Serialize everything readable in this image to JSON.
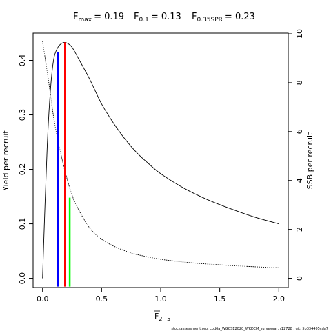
{
  "chart_data": {
    "type": "line",
    "title": {
      "fmax_label": "F",
      "fmax_sub": "max",
      "fmax_value": "= 0.19",
      "f01_label": "F",
      "f01_sub": "0.1",
      "f01_value": "= 0.13",
      "fspr_label": "F",
      "fspr_sub": "0.35SPR",
      "fspr_value": "= 0.23"
    },
    "xlabel": "F",
    "xlabel_sub": "2−5",
    "ylabel_left": "Yield per recruit",
    "ylabel_right": "SSB per recruit",
    "footer": "stockassessment.org, cod6a_WGCSE2020_WKDEM_surveyvar, r12728 , git: 5b334405cda7",
    "xlim": [
      -0.08,
      2.08
    ],
    "ylim_left": [
      -0.017,
      0.45
    ],
    "ylim_right": [
      0,
      10
    ],
    "x_ticks": [
      0,
      0.5,
      1,
      1.5,
      2
    ],
    "x_tick_labels": [
      "0.0",
      "0.5",
      "1.0",
      "1.5",
      "2.0"
    ],
    "y_left_ticks": [
      0,
      0.1,
      0.2,
      0.3,
      0.4
    ],
    "y_left_tick_labels": [
      "0.0",
      "0.1",
      "0.2",
      "0.3",
      "0.4"
    ],
    "y_right_ticks": [
      0,
      2,
      4,
      6,
      8,
      10
    ],
    "y_right_tick_labels": [
      "0",
      "2",
      "4",
      "6",
      "8",
      "10"
    ],
    "series": [
      {
        "style": "solid",
        "axis": "left",
        "x": [
          0,
          0.02,
          0.04,
          0.06,
          0.08,
          0.1,
          0.13,
          0.16,
          0.19,
          0.22,
          0.25,
          0.3,
          0.4,
          0.5,
          0.6,
          0.7,
          0.8,
          0.9,
          1.0,
          1.2,
          1.4,
          1.6,
          1.8,
          2.0
        ],
        "y": [
          0.0,
          0.13,
          0.245,
          0.325,
          0.378,
          0.408,
          0.424,
          0.431,
          0.433,
          0.43,
          0.424,
          0.405,
          0.365,
          0.32,
          0.285,
          0.255,
          0.23,
          0.21,
          0.192,
          0.165,
          0.144,
          0.127,
          0.112,
          0.1
        ]
      },
      {
        "style": "dotted",
        "axis": "right",
        "x": [
          0,
          0.05,
          0.1,
          0.15,
          0.2,
          0.25,
          0.3,
          0.4,
          0.5,
          0.6,
          0.7,
          0.8,
          1.0,
          1.2,
          1.4,
          1.6,
          1.8,
          2.0
        ],
        "y": [
          9.7,
          8.1,
          6.4,
          5.2,
          4.2,
          3.4,
          2.85,
          2.05,
          1.6,
          1.32,
          1.12,
          0.97,
          0.78,
          0.66,
          0.58,
          0.52,
          0.47,
          0.43
        ]
      }
    ],
    "reference_lines": [
      {
        "color": "#0000ff",
        "x": 0.13,
        "y_top": 0.415
      },
      {
        "color": "#ff0000",
        "x": 0.19,
        "y_top": 0.433
      },
      {
        "color": "#00ff00",
        "x": 0.23,
        "y_top": 0.148
      }
    ]
  }
}
